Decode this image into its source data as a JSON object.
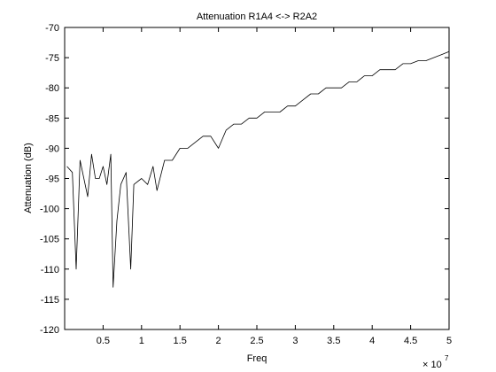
{
  "chart_data": {
    "type": "line",
    "title": "Attenuation R1A4 <-> R2A2",
    "xlabel": "Freq",
    "ylabel": "Attenuation (dB)",
    "x_multiplier_base": "× 10",
    "x_multiplier_exp": "7",
    "xlim": [
      0,
      50000000
    ],
    "ylim": [
      -120,
      -70
    ],
    "xticks": [
      5000000,
      10000000,
      15000000,
      20000000,
      25000000,
      30000000,
      35000000,
      40000000,
      45000000,
      50000000
    ],
    "xtick_labels": [
      "0.5",
      "1",
      "1.5",
      "2",
      "2.5",
      "3",
      "3.5",
      "4",
      "4.5",
      "5"
    ],
    "yticks": [
      -120,
      -115,
      -110,
      -105,
      -100,
      -95,
      -90,
      -85,
      -80,
      -75,
      -70
    ],
    "ytick_labels": [
      "-120",
      "-115",
      "-110",
      "-105",
      "-100",
      "-95",
      "-90",
      "-85",
      "-80",
      "-75",
      "-70"
    ],
    "grid": false,
    "line_color": "#000000",
    "series": [
      {
        "x": [
          300000,
          1000000,
          1500000,
          2000000,
          2500000,
          3000000,
          3500000,
          4000000,
          4500000,
          5000000,
          5500000,
          6000000,
          6300000,
          6800000,
          7300000,
          8000000,
          8600000,
          9000000,
          10000000,
          10800000,
          11500000,
          12000000,
          13000000,
          14000000,
          15000000,
          16000000,
          17000000,
          18000000,
          19000000,
          20000000,
          21000000,
          22000000,
          23000000,
          24000000,
          25000000,
          26000000,
          27000000,
          28000000,
          29000000,
          30000000,
          31000000,
          32000000,
          33000000,
          34000000,
          35000000,
          36000000,
          37000000,
          38000000,
          39000000,
          40000000,
          41000000,
          42000000,
          43000000,
          44000000,
          45000000,
          46000000,
          47000000,
          48000000,
          49000000,
          50000000
        ],
        "y": [
          -93,
          -94,
          -110,
          -92,
          -95,
          -98,
          -91,
          -95,
          -95,
          -93,
          -96,
          -91,
          -113,
          -102,
          -96,
          -94,
          -110,
          -96,
          -95,
          -96,
          -93,
          -97,
          -92,
          -92,
          -90,
          -90,
          -89,
          -88,
          -88,
          -90,
          -87,
          -86,
          -86,
          -85,
          -85,
          -84,
          -84,
          -84,
          -83,
          -83,
          -82,
          -81,
          -81,
          -80,
          -80,
          -80,
          -79,
          -79,
          -78,
          -78,
          -77,
          -77,
          -77,
          -76,
          -76,
          -75.5,
          -75.5,
          -75,
          -74.5,
          -74
        ]
      }
    ]
  }
}
